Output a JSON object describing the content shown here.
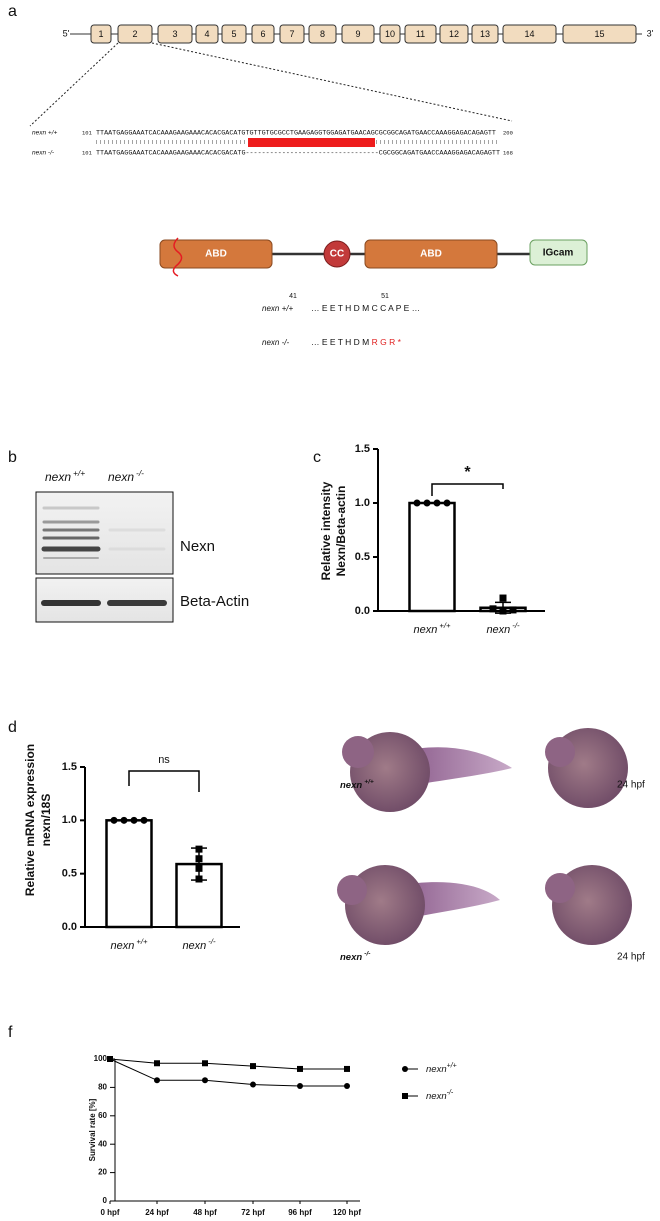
{
  "panel_labels": [
    "a",
    "b",
    "c",
    "d",
    "f"
  ],
  "gene_structure": {
    "five_prime": "5'",
    "three_prime": "3'",
    "exons": [
      "1",
      "2",
      "3",
      "4",
      "5",
      "6",
      "7",
      "8",
      "9",
      "10",
      "11",
      "12",
      "13",
      "14",
      "15"
    ]
  },
  "alignment": {
    "rows": [
      {
        "genotype": "nexn +/+",
        "start": 101,
        "sequence": "TTAATGAGGAAATCACAAAGAAGAAACACACGACATGTGTTGTGCGCCTGAAGAGGTGGAGATGAACAGCGCGGCAGATGAACCAAAGGAGACAGAGTT",
        "end": 200
      },
      {
        "genotype": "nexn -/-",
        "start": 101,
        "sequence": "TTAATGAGGAAATCACAAAGAAGAAACACACGACATG---------------------------------CGCGGCAGATGAACCAAAGGAGACAGAGTT",
        "end": 168
      }
    ]
  },
  "protein": {
    "domains": [
      "ABD",
      "CC",
      "ABD",
      "IGcam"
    ],
    "positions": [
      41,
      51
    ],
    "rows": [
      {
        "genotype": "nexn +/+",
        "sequence": "… E E T H D M C C A P E …"
      },
      {
        "genotype": "nexn -/-",
        "sequence": "… E E T H D M ",
        "frameshift": "R G R *"
      }
    ]
  },
  "western_blot": {
    "genotypes": [
      {
        "name": "nexn",
        "sup": "+/+"
      },
      {
        "name": "nexn",
        "sup": "-/-"
      }
    ],
    "bands": [
      "Nexn",
      "Beta-Actin"
    ]
  },
  "in_situ": {
    "rows": [
      {
        "genotype": {
          "name": "nexn",
          "sup": "+/+"
        },
        "stage": "24 hpf"
      },
      {
        "genotype": {
          "name": "nexn",
          "sup": "-/-"
        },
        "stage": "24 hpf"
      }
    ]
  },
  "chart_data": [
    {
      "type": "bar",
      "y_label": [
        "Relative intensity",
        "Nexn/Beta-actin"
      ],
      "categories": [
        {
          "name": "nexn",
          "sup": "+/+"
        },
        {
          "name": "nexn",
          "sup": "-/-"
        }
      ],
      "values": [
        1.0,
        0.03
      ],
      "errors": [
        0,
        0.05
      ],
      "points": [
        [
          1,
          1,
          1,
          1
        ],
        [
          0.12,
          0.02,
          0.01,
          0.0
        ]
      ],
      "point_markers": [
        "circle",
        "square"
      ],
      "significance": "*",
      "color": "#ffffff",
      "ylim": [
        0,
        1.5
      ],
      "yticks": [
        {
          "value": 0,
          "label": "0.0"
        },
        {
          "value": 0.5,
          "label": "0.5"
        },
        {
          "value": 1,
          "label": "1.0"
        },
        {
          "value": 1.5,
          "label": "1.5"
        }
      ]
    },
    {
      "type": "bar",
      "y_label": [
        "Relative mRNA expression",
        "nexn/18S"
      ],
      "categories": [
        {
          "name": "nexn",
          "sup": "+/+"
        },
        {
          "name": "nexn",
          "sup": "-/-"
        }
      ],
      "values": [
        1.0,
        0.59
      ],
      "errors": [
        0,
        0.15
      ],
      "points": [
        [
          1,
          1,
          1,
          1
        ],
        [
          0.73,
          0.64,
          0.55,
          0.45
        ]
      ],
      "point_markers": [
        "circle",
        "square"
      ],
      "significance": "ns",
      "color": "#ffffff",
      "ylim": [
        0,
        1.5
      ],
      "yticks": [
        {
          "value": 0,
          "label": "0.0"
        },
        {
          "value": 0.5,
          "label": "0.5"
        },
        {
          "value": 1,
          "label": "1.0"
        },
        {
          "value": 1.5,
          "label": "1.5"
        }
      ]
    },
    {
      "type": "line",
      "y_label": "Survival rate [%]",
      "categories": [
        "0 hpf",
        "24 hpf",
        "48 hpf",
        "72 hpf",
        "96 hpf",
        "120 hpf"
      ],
      "series": [
        {
          "name": "nexn",
          "sup": "+/+",
          "marker": "circle",
          "color": "#000000",
          "values": [
            100,
            85,
            85,
            82,
            81,
            81
          ]
        },
        {
          "name": "nexn",
          "sup": "-/-",
          "marker": "square",
          "color": "#000000",
          "values": [
            100,
            97,
            97,
            95,
            93,
            93
          ]
        }
      ],
      "ylim": [
        0,
        100
      ],
      "yticks": [
        0,
        20,
        40,
        60,
        80,
        100
      ],
      "legend": "right"
    }
  ]
}
